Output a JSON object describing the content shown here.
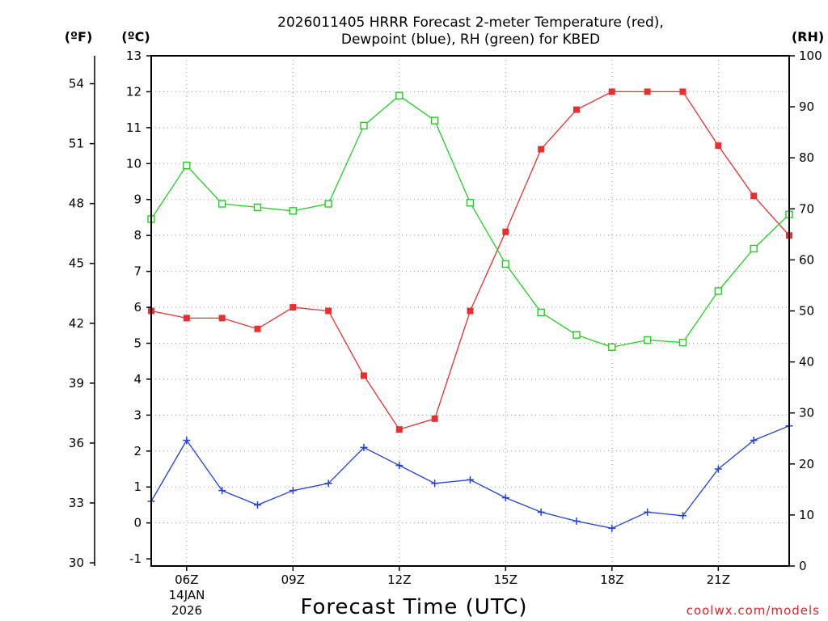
{
  "chart_data": {
    "type": "line",
    "title_line1": "2026011405 HRRR Forecast 2-meter Temperature (red),",
    "title_line2": "Dewpoint (blue), RH (green) for KBED",
    "xlabel": "Forecast Time (UTC)",
    "credit": "coolwx.com/models",
    "unit_f": "(ºF)",
    "unit_c": "(ºC)",
    "unit_rh": "(RH)",
    "date_line1": "14JAN",
    "date_line2": "2026",
    "x_hours": [
      5,
      6,
      7,
      8,
      9,
      10,
      11,
      12,
      13,
      14,
      15,
      16,
      17,
      18,
      19,
      20,
      21,
      22,
      23
    ],
    "x_range": [
      5,
      23
    ],
    "x_ticks": [
      {
        "hour": 6,
        "label": "06Z"
      },
      {
        "hour": 9,
        "label": "09Z"
      },
      {
        "hour": 12,
        "label": "12Z"
      },
      {
        "hour": 15,
        "label": "15Z"
      },
      {
        "hour": 18,
        "label": "18Z"
      },
      {
        "hour": 21,
        "label": "21Z"
      }
    ],
    "celsius_range": [
      -1.2,
      13
    ],
    "celsius_ticks": [
      "-1",
      "0",
      "1",
      "2",
      "3",
      "4",
      "5",
      "6",
      "7",
      "8",
      "9",
      "10",
      "11",
      "12",
      "13"
    ],
    "fahrenheit_ticks": [
      "30",
      "33",
      "36",
      "39",
      "42",
      "45",
      "48",
      "51",
      "54"
    ],
    "rh_range": [
      0,
      100
    ],
    "rh_ticks": [
      "0",
      "10",
      "20",
      "30",
      "40",
      "50",
      "60",
      "70",
      "80",
      "90",
      "100"
    ],
    "grid": true,
    "series": [
      {
        "name": "Temperature",
        "axis": "celsius",
        "color": "#e83030",
        "marker": "filled-square",
        "values": [
          5.9,
          5.7,
          5.7,
          5.4,
          6.0,
          5.9,
          4.1,
          2.6,
          2.9,
          5.9,
          8.1,
          10.4,
          11.5,
          12.0,
          12.0,
          12.0,
          10.5,
          9.1,
          8.0
        ]
      },
      {
        "name": "Dewpoint",
        "axis": "celsius",
        "color": "#2040e0",
        "marker": "plus",
        "values": [
          0.6,
          2.3,
          0.9,
          0.5,
          0.9,
          1.1,
          2.1,
          1.6,
          1.1,
          1.2,
          0.7,
          0.3,
          0.05,
          -0.15,
          0.3,
          0.2,
          1.5,
          2.3,
          2.7
        ]
      },
      {
        "name": "RH",
        "axis": "rh",
        "color": "#20d020",
        "marker": "open-square",
        "values": [
          68,
          78.5,
          71,
          70.3,
          69.6,
          71,
          86.3,
          92.2,
          87.3,
          71.2,
          59.2,
          49.7,
          45.3,
          42.9,
          44.3,
          43.8,
          53.9,
          62.2,
          68.9
        ]
      }
    ]
  }
}
